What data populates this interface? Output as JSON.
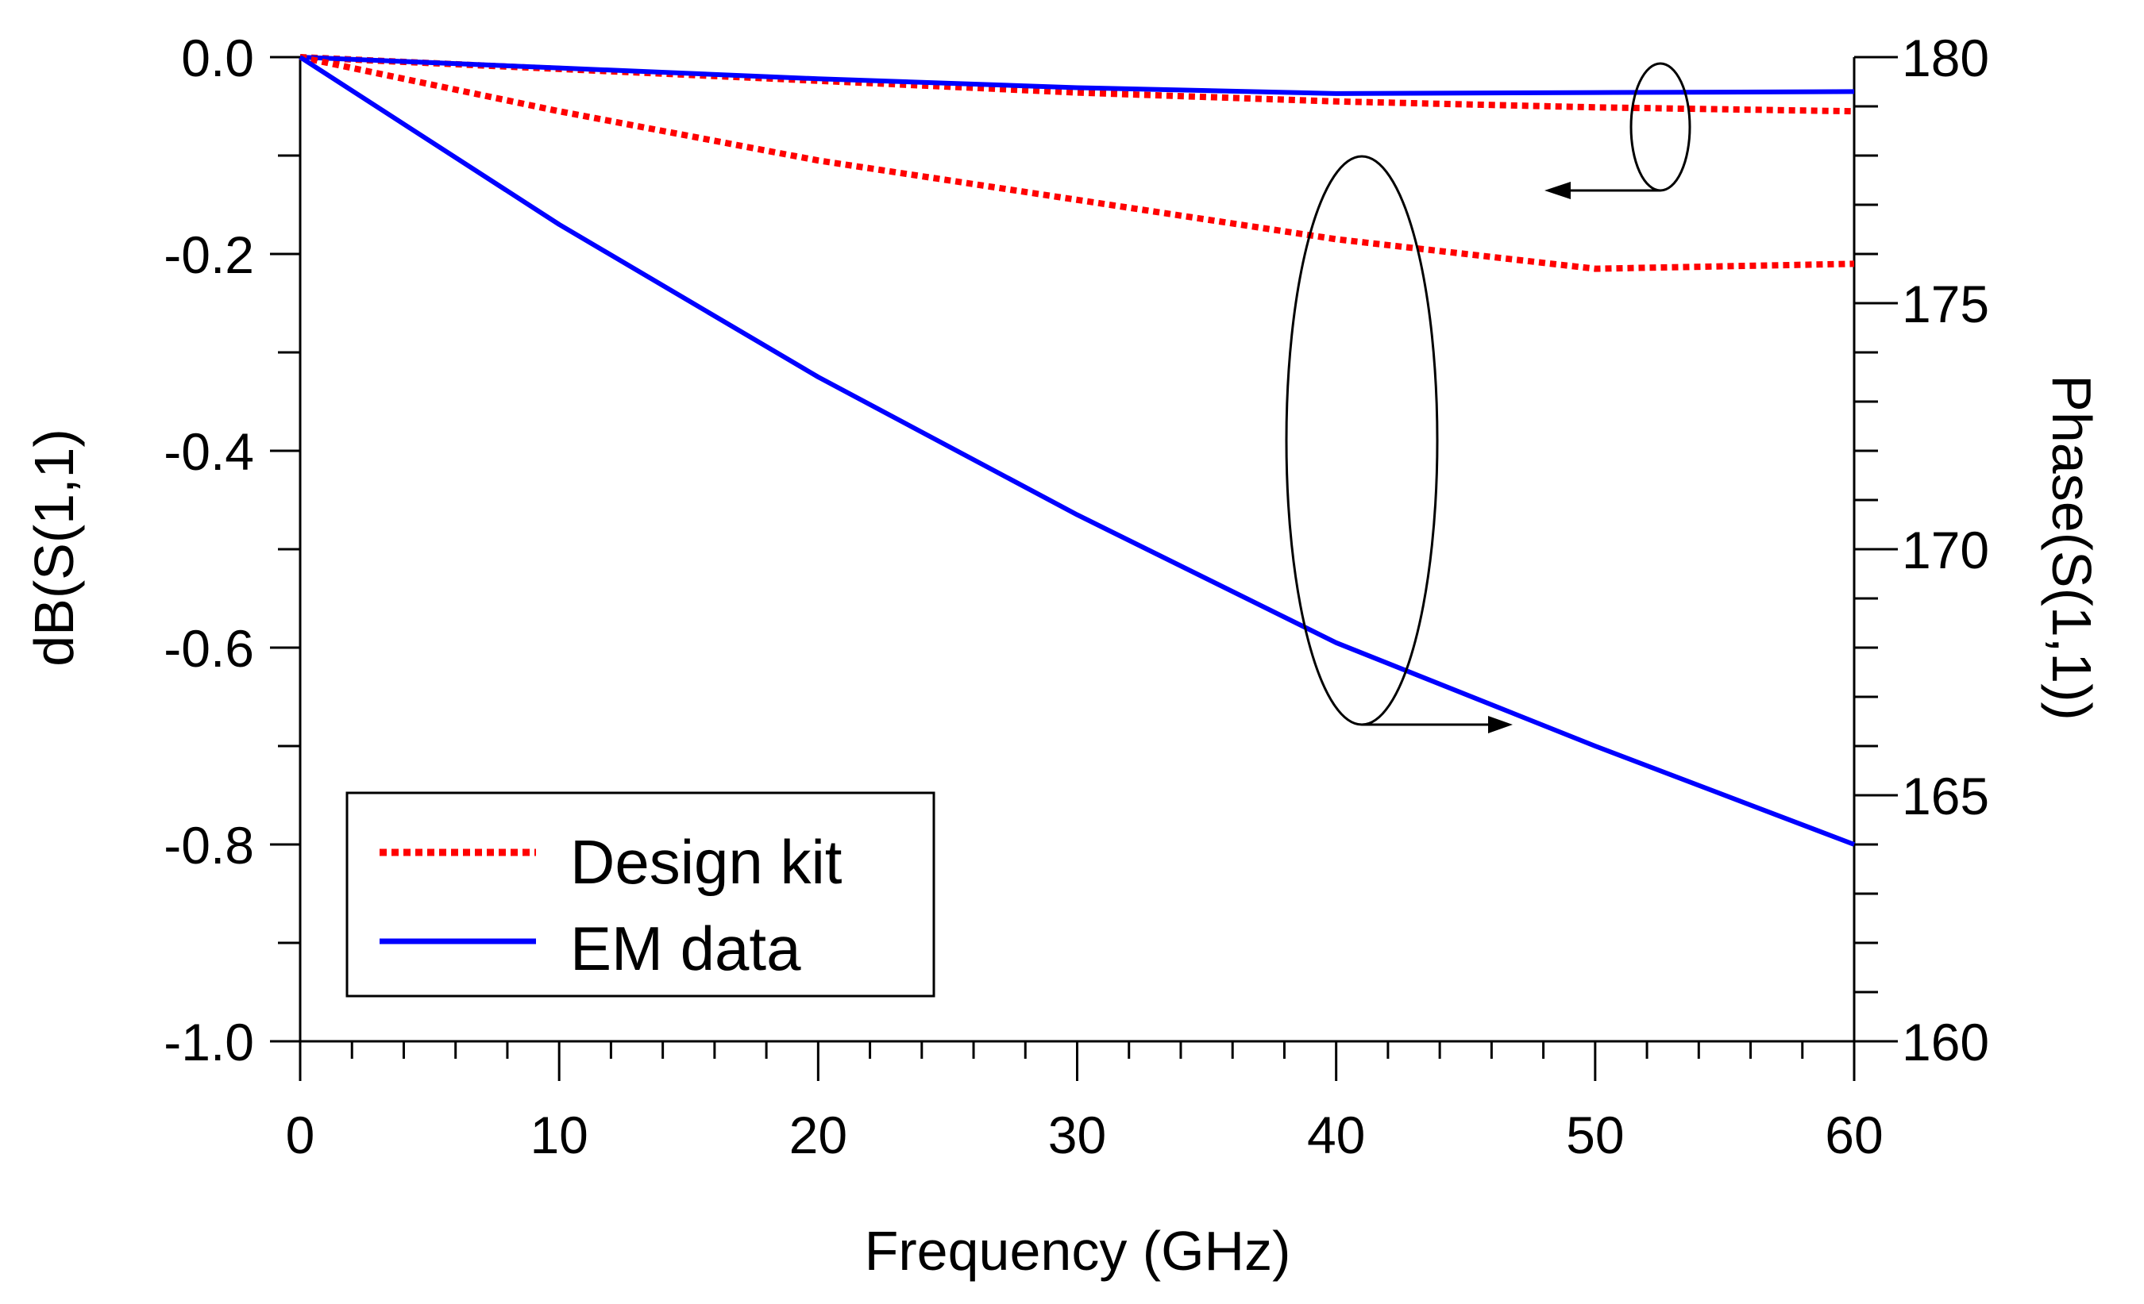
{
  "chart_data": {
    "type": "line",
    "title": "",
    "xlabel": "Frequency (GHz)",
    "ylabel_left": "dB(S(1,1)",
    "ylabel_right": "Phase(S(1,1))",
    "xlim": [
      0,
      60
    ],
    "ylim_left": [
      -1.0,
      0.0
    ],
    "ylim_right": [
      160,
      180
    ],
    "x_ticks": [
      "0",
      "10",
      "20",
      "30",
      "40",
      "50",
      "60"
    ],
    "y_left_ticks": [
      "0.0",
      "-0.2",
      "-0.4",
      "-0.6",
      "-0.8",
      "-1.0"
    ],
    "y_right_ticks": [
      "180",
      "175",
      "170",
      "165",
      "160"
    ],
    "legend_position": "bottom-left",
    "series": [
      {
        "name": "Design kit",
        "axis": "left",
        "quantity": "magnitude",
        "style": "dotted",
        "color": "#ff0000",
        "x": [
          0,
          10,
          20,
          30,
          40,
          50,
          60
        ],
        "values": [
          0.0,
          -0.012,
          -0.024,
          -0.036,
          -0.045,
          -0.051,
          -0.055
        ]
      },
      {
        "name": "EM data",
        "axis": "left",
        "quantity": "magnitude",
        "style": "solid",
        "color": "#0000ff",
        "x": [
          0,
          10,
          20,
          30,
          40,
          50,
          60
        ],
        "values": [
          0.0,
          -0.011,
          -0.022,
          -0.031,
          -0.037,
          -0.036,
          -0.035
        ]
      },
      {
        "name": "Design kit",
        "axis": "right",
        "quantity": "phase",
        "style": "dotted",
        "color": "#ff0000",
        "x": [
          0,
          10,
          20,
          30,
          40,
          50,
          60
        ],
        "values": [
          180.0,
          178.9,
          177.9,
          177.1,
          176.3,
          175.7,
          175.8
        ]
      },
      {
        "name": "EM data",
        "axis": "right",
        "quantity": "phase",
        "style": "solid",
        "color": "#0000ff",
        "x": [
          0,
          10,
          20,
          30,
          40,
          50,
          60
        ],
        "values": [
          180.0,
          176.6,
          173.5,
          170.7,
          168.1,
          166.0,
          164.0
        ]
      }
    ],
    "legend": [
      {
        "label": "Design kit",
        "color": "#ff0000",
        "style": "dotted"
      },
      {
        "label": "EM data",
        "color": "#0000ff",
        "style": "solid"
      }
    ],
    "annotations": [
      {
        "type": "ellipse-with-arrow",
        "target_axis": "left",
        "description": "magnitude curves point to left axis"
      },
      {
        "type": "ellipse-with-arrow",
        "target_axis": "right",
        "description": "phase curves point to right axis"
      }
    ]
  }
}
